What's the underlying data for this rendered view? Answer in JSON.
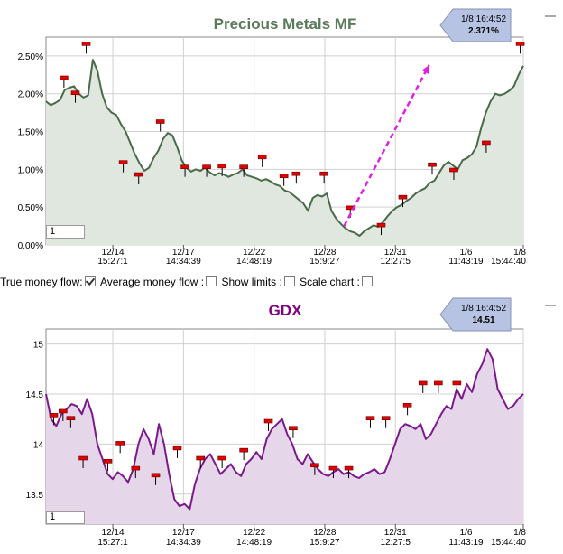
{
  "chart_data": [
    {
      "type": "line",
      "title": "Precious Metals MF",
      "title_color": "#5a7a5a",
      "line_color": "#4a6b4a",
      "fill_color": "#dfe7df",
      "y_ticks": [
        "2.50%",
        "2.00%",
        "1.50%",
        "1.00%",
        "0.50%",
        "0.00%"
      ],
      "y_tick_values": [
        2.5,
        2.0,
        1.5,
        1.0,
        0.5,
        0.0
      ],
      "ylim": [
        0.0,
        2.75
      ],
      "x_ticks": [
        {
          "date": "12/14",
          "time": "15:27:1"
        },
        {
          "date": "12/17",
          "time": "14:34:39"
        },
        {
          "date": "12/22",
          "time": "14:48:19"
        },
        {
          "date": "12/28",
          "time": "15:9:27"
        },
        {
          "date": "12/31",
          "time": "12:27:5"
        },
        {
          "date": "1/6",
          "time": "11:43:19"
        },
        {
          "date": "1/8",
          "time": "15:44:40"
        }
      ],
      "callout": {
        "time": "1/8 16:4:52",
        "value": "2.371%"
      },
      "input_value": "1",
      "series": [
        {
          "values": [
            1.9,
            1.85,
            1.88,
            1.92,
            2.05,
            2.08,
            2.1,
            2.0,
            1.95,
            1.98,
            2.45,
            2.3,
            2.0,
            1.82,
            1.75,
            1.72,
            1.6,
            1.5,
            1.35,
            1.2,
            1.08,
            0.98,
            1.02,
            1.15,
            1.25,
            1.4,
            1.48,
            1.45,
            1.3,
            1.12,
            1.02,
            0.97,
            1.0,
            0.98,
            1.02,
            0.96,
            0.92,
            0.95,
            0.93,
            0.9,
            0.93,
            0.95,
            1.0,
            0.92,
            0.9,
            0.88,
            0.85,
            0.87,
            0.84,
            0.8,
            0.78,
            0.72,
            0.7,
            0.65,
            0.6,
            0.55,
            0.45,
            0.62,
            0.66,
            0.64,
            0.68,
            0.45,
            0.35,
            0.28,
            0.22,
            0.18,
            0.16,
            0.12,
            0.18,
            0.22,
            0.26,
            0.24,
            0.3,
            0.38,
            0.45,
            0.5,
            0.53,
            0.58,
            0.62,
            0.68,
            0.72,
            0.75,
            0.82,
            0.85,
            0.95,
            1.05,
            1.1,
            1.05,
            1.0,
            1.12,
            1.15,
            1.2,
            1.3,
            1.55,
            1.75,
            1.9,
            2.0,
            1.98,
            2.0,
            2.04,
            2.1,
            2.25,
            2.37
          ]
        }
      ],
      "markers": [
        {
          "x": 0.058,
          "y": 2.2
        },
        {
          "x": 0.13,
          "y": 2.65
        },
        {
          "x": 0.095,
          "y": 2.0
        },
        {
          "x": 0.25,
          "y": 1.08
        },
        {
          "x": 0.3,
          "y": 0.92
        },
        {
          "x": 0.37,
          "y": 1.62
        },
        {
          "x": 0.45,
          "y": 1.02
        },
        {
          "x": 0.52,
          "y": 1.02
        },
        {
          "x": 0.57,
          "y": 1.03
        },
        {
          "x": 0.64,
          "y": 1.02
        },
        {
          "x": 0.7,
          "y": 1.15
        },
        {
          "x": 0.77,
          "y": 0.9
        },
        {
          "x": 0.81,
          "y": 0.93
        },
        {
          "x": 0.9,
          "y": 0.93
        },
        {
          "x": 0.985,
          "y": 0.48
        },
        {
          "x": 1.085,
          "y": 0.25
        },
        {
          "x": 1.155,
          "y": 0.62
        },
        {
          "x": 1.25,
          "y": 1.05
        },
        {
          "x": 1.32,
          "y": 0.98
        },
        {
          "x": 1.425,
          "y": 1.34
        },
        {
          "x": 1.535,
          "y": 2.65
        }
      ],
      "trend_arrow": {
        "from": [
          0.965,
          0.25
        ],
        "to": [
          1.24,
          2.38
        ],
        "color": "#e020e0"
      }
    },
    {
      "type": "line",
      "title": "GDX",
      "title_color": "#800080",
      "line_color": "#7a1a8a",
      "fill_color": "#e6d6ea",
      "y_ticks": [
        "15",
        "14.5",
        "14",
        "13.5"
      ],
      "y_tick_values": [
        15.0,
        14.5,
        14.0,
        13.5
      ],
      "ylim": [
        13.2,
        15.15
      ],
      "x_ticks": [
        {
          "date": "12/14",
          "time": "15:27:1"
        },
        {
          "date": "12/17",
          "time": "14:34:39"
        },
        {
          "date": "12/22",
          "time": "14:48:19"
        },
        {
          "date": "12/28",
          "time": "15:9:27"
        },
        {
          "date": "12/31",
          "time": "12:27:5"
        },
        {
          "date": "1/6",
          "time": "11:43:19"
        },
        {
          "date": "1/8",
          "time": "15:44:40"
        }
      ],
      "callout": {
        "time": "1/8 16:4:52",
        "value": "14.51"
      },
      "input_value": "1",
      "series": [
        {
          "values": [
            14.5,
            14.25,
            14.18,
            14.3,
            14.35,
            14.4,
            14.38,
            14.3,
            14.45,
            14.3,
            14.0,
            13.85,
            13.7,
            13.65,
            13.72,
            13.68,
            13.62,
            13.75,
            14.0,
            14.15,
            14.05,
            13.9,
            14.2,
            14.0,
            13.7,
            13.45,
            13.38,
            13.4,
            13.35,
            13.6,
            13.75,
            13.85,
            13.9,
            13.8,
            13.7,
            13.75,
            13.8,
            13.72,
            13.68,
            13.8,
            13.85,
            13.92,
            13.85,
            14.05,
            14.15,
            14.2,
            14.25,
            14.1,
            14.0,
            13.85,
            13.8,
            13.9,
            13.82,
            13.75,
            13.7,
            13.68,
            13.72,
            13.75,
            13.7,
            13.72,
            13.68,
            13.66,
            13.7,
            13.72,
            13.75,
            13.7,
            13.72,
            13.85,
            14.0,
            14.15,
            14.2,
            14.18,
            14.15,
            14.2,
            14.05,
            14.1,
            14.2,
            14.3,
            14.38,
            14.35,
            14.55,
            14.45,
            14.6,
            14.52,
            14.7,
            14.8,
            14.95,
            14.85,
            14.55,
            14.45,
            14.35,
            14.38,
            14.45,
            14.5
          ]
        }
      ],
      "markers": [
        {
          "x": 0.025,
          "y": 14.28
        },
        {
          "x": 0.055,
          "y": 14.32
        },
        {
          "x": 0.08,
          "y": 14.25
        },
        {
          "x": 0.12,
          "y": 13.85
        },
        {
          "x": 0.2,
          "y": 13.82
        },
        {
          "x": 0.24,
          "y": 14.0
        },
        {
          "x": 0.29,
          "y": 13.75
        },
        {
          "x": 0.355,
          "y": 13.68
        },
        {
          "x": 0.425,
          "y": 13.95
        },
        {
          "x": 0.5,
          "y": 13.85
        },
        {
          "x": 0.57,
          "y": 13.85
        },
        {
          "x": 0.64,
          "y": 13.93
        },
        {
          "x": 0.72,
          "y": 14.22
        },
        {
          "x": 0.8,
          "y": 14.15
        },
        {
          "x": 0.87,
          "y": 13.78
        },
        {
          "x": 0.93,
          "y": 13.75
        },
        {
          "x": 0.98,
          "y": 13.75
        },
        {
          "x": 1.05,
          "y": 14.25
        },
        {
          "x": 1.1,
          "y": 14.25
        },
        {
          "x": 1.17,
          "y": 14.38
        },
        {
          "x": 1.22,
          "y": 14.6
        },
        {
          "x": 1.27,
          "y": 14.6
        },
        {
          "x": 1.33,
          "y": 14.6
        }
      ]
    }
  ],
  "controls": {
    "true_money_flow": "True money flow:",
    "average_money_flow": "Average money flow :",
    "show_limits": "Show limits :",
    "scale_chart": "Scale chart :"
  }
}
